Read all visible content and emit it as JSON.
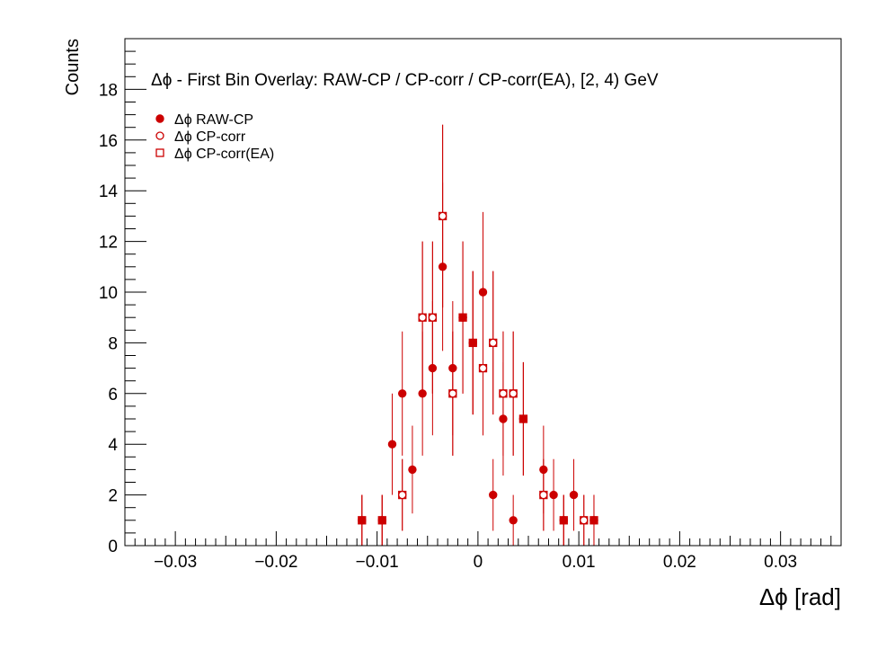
{
  "chart_data": {
    "type": "scatter",
    "title": "Δϕ  -  First Bin Overlay: RAW-CP / CP-corr / CP-corr(EA), [2, 4) GeV",
    "xlabel": "Δϕ  [rad]",
    "ylabel": "Counts",
    "xlim": [
      -0.035,
      0.036
    ],
    "ylim": [
      0,
      20
    ],
    "x_ticks": [
      -0.03,
      -0.02,
      -0.01,
      0,
      0.01,
      0.02,
      0.03
    ],
    "x_tick_labels": [
      "−0.03",
      "−0.02",
      "−0.01",
      "0",
      "0.01",
      "0.02",
      "0.03"
    ],
    "y_ticks": [
      0,
      2,
      4,
      6,
      8,
      10,
      12,
      14,
      16,
      18
    ],
    "y_tick_labels": [
      "0",
      "2",
      "4",
      "6",
      "8",
      "10",
      "12",
      "14",
      "16",
      "18"
    ],
    "grid": false,
    "legend_position": "top-left",
    "color": "#cc0000",
    "series": [
      {
        "name": "Δϕ RAW-CP",
        "marker": "filled-circle",
        "x": [
          -0.0115,
          -0.0095,
          -0.0085,
          -0.0075,
          -0.0065,
          -0.0055,
          -0.0045,
          -0.0035,
          -0.0025,
          -0.0015,
          -0.0005,
          0.0005,
          0.0015,
          0.0025,
          0.0035,
          0.0045,
          0.0065,
          0.0075,
          0.0085,
          0.0095,
          0.0115
        ],
        "y": [
          1,
          1,
          4,
          6,
          3,
          6,
          7,
          11,
          7,
          9,
          8,
          10,
          2,
          5,
          1,
          5,
          3,
          2,
          1,
          2,
          1
        ]
      },
      {
        "name": "Δϕ CP-corr",
        "marker": "open-circle",
        "x": [
          -0.0115,
          -0.0095,
          -0.0075,
          -0.0055,
          -0.0045,
          -0.0035,
          -0.0025,
          -0.0015,
          -0.0005,
          0.0005,
          0.0015,
          0.0025,
          0.0035,
          0.0045,
          0.0065,
          0.0085,
          0.0105,
          0.0115
        ],
        "y": [
          1,
          1,
          2,
          9,
          9,
          13,
          6,
          9,
          8,
          7,
          8,
          6,
          6,
          5,
          2,
          1,
          1,
          1
        ]
      },
      {
        "name": "Δϕ CP-corr(EA)",
        "marker": "open-square",
        "x": [
          -0.0115,
          -0.0095,
          -0.0075,
          -0.0055,
          -0.0045,
          -0.0035,
          -0.0025,
          -0.0015,
          -0.0005,
          0.0005,
          0.0015,
          0.0025,
          0.0035,
          0.0045,
          0.0065,
          0.0085,
          0.0105,
          0.0115
        ],
        "y": [
          1,
          1,
          2,
          9,
          9,
          13,
          6,
          9,
          8,
          7,
          8,
          6,
          6,
          5,
          2,
          1,
          1,
          1
        ]
      }
    ]
  }
}
